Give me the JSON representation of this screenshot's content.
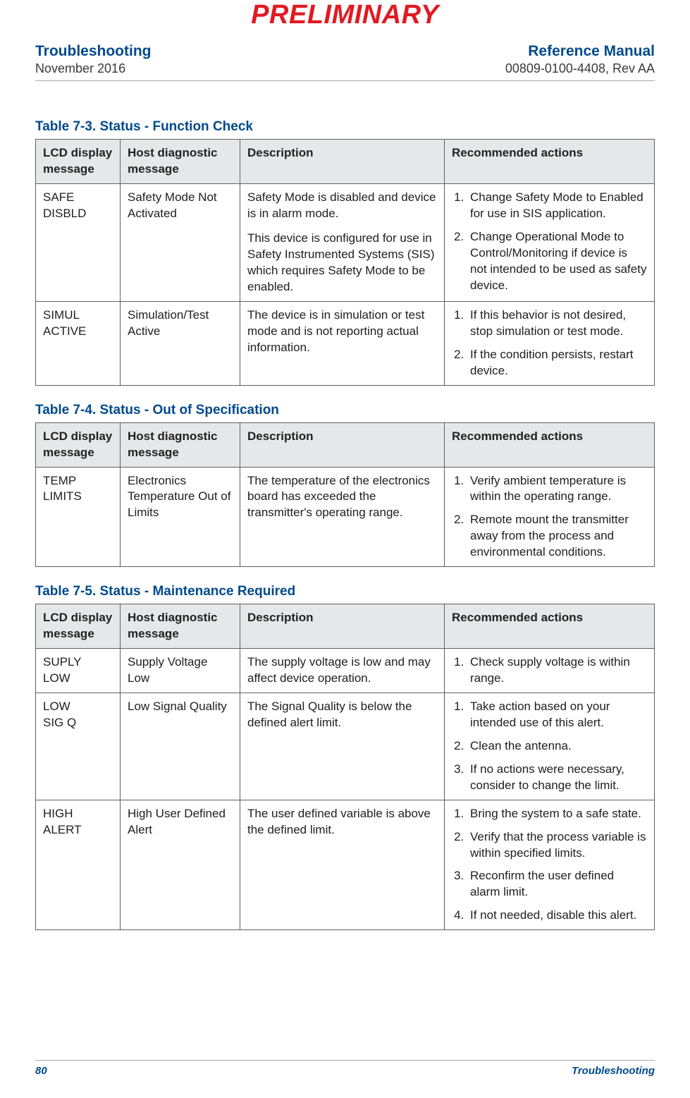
{
  "watermark": "PRELIMINARY",
  "header": {
    "left_title": "Troubleshooting",
    "left_sub": "November 2016",
    "right_title": "Reference Manual",
    "right_sub": "00809-0100-4408, Rev AA"
  },
  "columns": {
    "c1": "LCD display message",
    "c2": "Host diagnostic message",
    "c3": "Description",
    "c4": "Recommended actions"
  },
  "tables": [
    {
      "title": "Table 7-3.  Status - Function Check",
      "rows": [
        {
          "lcd_l1": "SAFE",
          "lcd_l2": "DISBLD",
          "host": "Safety Mode Not Activated",
          "desc_p1": "Safety Mode is disabled and device is in alarm mode.",
          "desc_p2": "This device is configured for use in Safety Instrumented Systems (SIS) which requires Safety Mode to be enabled.",
          "actions": [
            "Change Safety Mode to Enabled for use in SIS application.",
            "Change Operational Mode to Control/Monitoring if device is not intended to be used as safety device."
          ]
        },
        {
          "lcd_l1": "SIMUL",
          "lcd_l2": "ACTIVE",
          "host": "Simulation/Test Active",
          "desc_p1": "The device is in simulation or test mode and is not reporting actual information.",
          "desc_p2": "",
          "actions": [
            "If this behavior is not desired, stop simulation or test mode.",
            "If the condition persists, restart device."
          ]
        }
      ]
    },
    {
      "title": "Table 7-4.  Status - Out of Specification",
      "rows": [
        {
          "lcd_l1": "TEMP",
          "lcd_l2": "LIMITS",
          "host": "Electronics Temperature Out of Limits",
          "desc_p1": "The temperature of the electronics board has exceeded the transmitter's operating range.",
          "desc_p2": "",
          "actions": [
            "Verify ambient temperature is within the operating range.",
            "Remote mount the transmitter away from the process and environmental conditions."
          ]
        }
      ]
    },
    {
      "title": "Table 7-5.  Status - Maintenance Required",
      "rows": [
        {
          "lcd_l1": "SUPLY",
          "lcd_l2": "LOW",
          "host": "Supply Voltage Low",
          "desc_p1": "The supply voltage is low and may affect device operation.",
          "desc_p2": "",
          "actions": [
            "Check supply voltage is within range."
          ]
        },
        {
          "lcd_l1": "LOW",
          "lcd_l2": "SIG Q",
          "host": "Low Signal Quality",
          "desc_p1": "The Signal Quality is below the defined alert limit.",
          "desc_p2": "",
          "actions": [
            "Take action based on your intended use of this alert.",
            "Clean the antenna.",
            "If no actions were necessary, consider to change the limit."
          ]
        },
        {
          "lcd_l1": "HIGH",
          "lcd_l2": "ALERT",
          "host": "High User Defined Alert",
          "desc_p1": "The user defined variable is above the defined limit.",
          "desc_p2": "",
          "actions": [
            "Bring the system to a safe state.",
            "Verify that the process variable is within specified limits.",
            "Reconfirm the user defined alarm limit.",
            "If not needed, disable this alert."
          ]
        }
      ]
    }
  ],
  "footer": {
    "page": "80",
    "section": "Troubleshooting"
  },
  "colors": {
    "accent": "#004a8d",
    "warn": "#e11a22",
    "header_bg": "#e6e7e8",
    "border": "#606060"
  }
}
